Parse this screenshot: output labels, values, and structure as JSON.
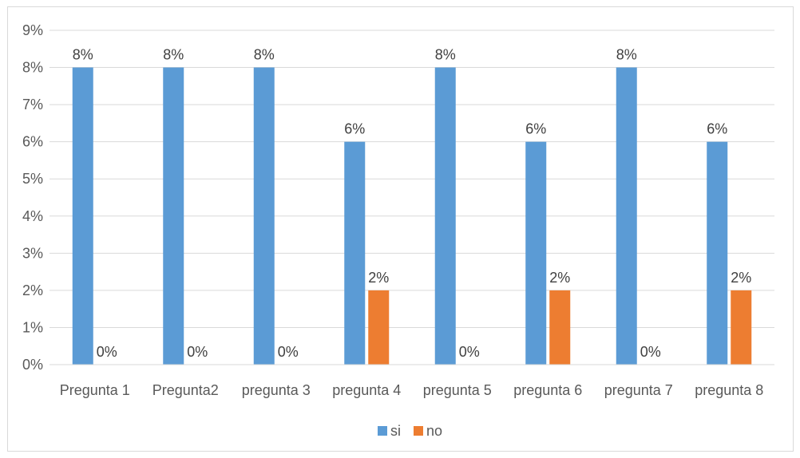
{
  "chart_data": {
    "type": "bar",
    "categories": [
      "Pregunta 1",
      "Pregunta2",
      "pregunta 3",
      "pregunta 4",
      "pregunta 5",
      "pregunta 6",
      "pregunta 7",
      "pregunta 8"
    ],
    "series": [
      {
        "name": "si",
        "color": "#5b9bd5",
        "values": [
          8,
          8,
          8,
          6,
          8,
          6,
          8,
          6
        ],
        "labels": [
          "8%",
          "8%",
          "8%",
          "6%",
          "8%",
          "6%",
          "8%",
          "6%"
        ]
      },
      {
        "name": "no",
        "color": "#ed7d31",
        "values": [
          0,
          0,
          0,
          2,
          0,
          2,
          0,
          2
        ],
        "labels": [
          "0%",
          "0%",
          "0%",
          "2%",
          "0%",
          "2%",
          "0%",
          "2%"
        ]
      }
    ],
    "yticks": [
      "0%",
      "1%",
      "2%",
      "3%",
      "4%",
      "5%",
      "6%",
      "7%",
      "8%",
      "9%"
    ],
    "ylim": [
      0,
      9
    ],
    "grid": true,
    "legend_position": "bottom"
  }
}
